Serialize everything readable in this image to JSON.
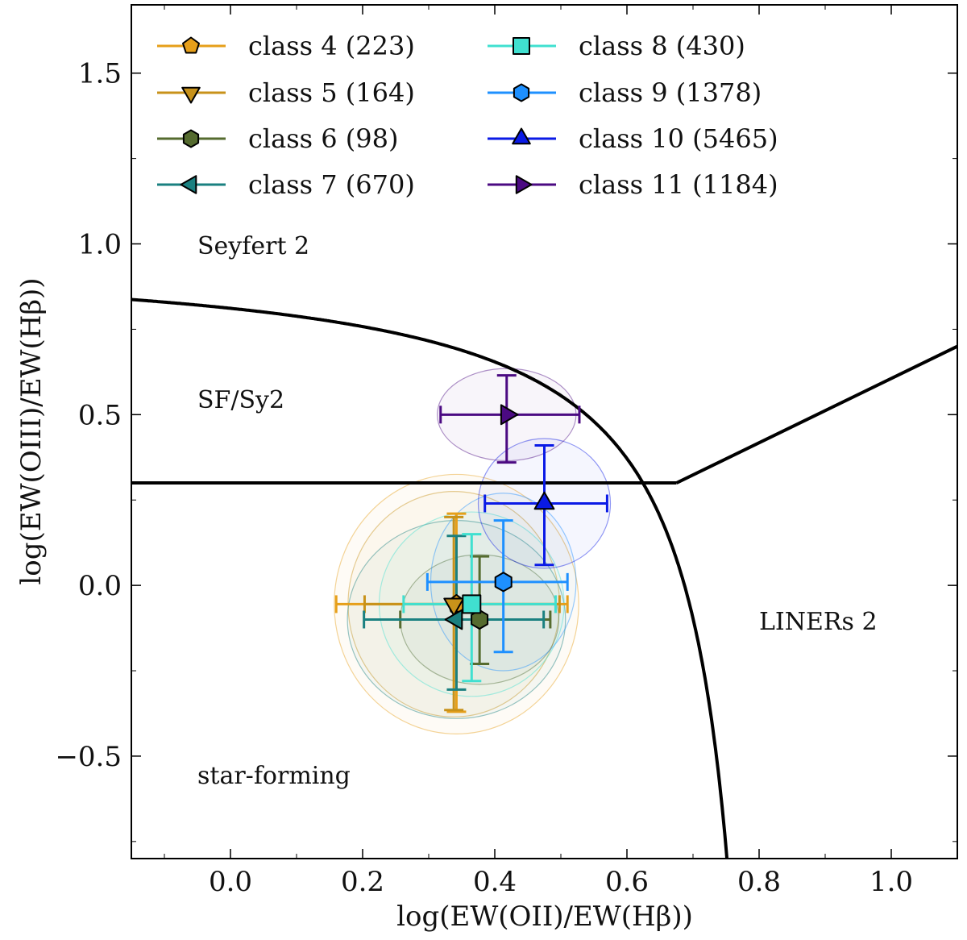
{
  "chart_data": {
    "type": "scatter",
    "xlabel": "log(EW(OII)/EW(Hβ))",
    "ylabel": "log(EW(OIII)/EW(Hβ))",
    "xlim": [
      -0.15,
      1.1
    ],
    "ylim": [
      -0.8,
      1.7
    ],
    "x_ticks": [
      {
        "value": 0.0,
        "label": "0.0"
      },
      {
        "value": 0.2,
        "label": "0.2"
      },
      {
        "value": 0.4,
        "label": "0.4"
      },
      {
        "value": 0.6,
        "label": "0.6"
      },
      {
        "value": 0.8,
        "label": "0.8"
      },
      {
        "value": 1.0,
        "label": "1.0"
      }
    ],
    "y_ticks": [
      {
        "value": -0.5,
        "label": "−0.5"
      },
      {
        "value": 0.0,
        "label": "0.0"
      },
      {
        "value": 0.5,
        "label": "0.5"
      },
      {
        "value": 1.0,
        "label": "1.0"
      },
      {
        "value": 1.5,
        "label": "1.5"
      }
    ],
    "regions": [
      {
        "label": "Seyfert 2",
        "x": -0.05,
        "y": 0.97
      },
      {
        "label": "SF/Sy2",
        "x": -0.05,
        "y": 0.52
      },
      {
        "label": "LINERs 2",
        "x": 0.8,
        "y": -0.13
      },
      {
        "label": "star-forming",
        "x": -0.05,
        "y": -0.58
      }
    ],
    "series": [
      {
        "name": "class 4 (223)",
        "color": "#E69F1A",
        "marker": "pentagon",
        "x": 0.342,
        "y": -0.055,
        "xerr": [
          0.182,
          0.168
        ],
        "yerr": [
          0.265,
          0.315
        ],
        "ell_rx": 0.185,
        "ell_ry": 0.38
      },
      {
        "name": "class 5 (164)",
        "color": "#C8921A",
        "marker": "triangle-down",
        "x": 0.338,
        "y": -0.055,
        "xerr": [
          0.135,
          0.16
        ],
        "yerr": [
          0.255,
          0.31
        ],
        "ell_rx": 0.16,
        "ell_ry": 0.33
      },
      {
        "name": "class 6 (98)",
        "color": "#556B2F",
        "marker": "hexagon",
        "x": 0.377,
        "y": -0.1,
        "xerr": [
          0.12,
          0.107
        ],
        "yerr": [
          0.185,
          0.13
        ],
        "ell_rx": 0.12,
        "ell_ry": 0.19
      },
      {
        "name": "class 7 (670)",
        "color": "#1A8080",
        "marker": "triangle-left",
        "x": 0.342,
        "y": -0.1,
        "xerr": [
          0.14,
          0.132
        ],
        "yerr": [
          0.245,
          0.205
        ],
        "ell_rx": 0.165,
        "ell_ry": 0.29
      },
      {
        "name": "class 8 (430)",
        "color": "#40E0D0",
        "marker": "square",
        "x": 0.365,
        "y": -0.055,
        "xerr": [
          0.103,
          0.127
        ],
        "yerr": [
          0.205,
          0.225
        ],
        "ell_rx": 0.14,
        "ell_ry": 0.27
      },
      {
        "name": "class 9 (1378)",
        "color": "#1E90FF",
        "marker": "hexagon",
        "x": 0.413,
        "y": 0.01,
        "xerr": [
          0.115,
          0.097
        ],
        "yerr": [
          0.18,
          0.205
        ],
        "ell_rx": 0.11,
        "ell_ry": 0.26
      },
      {
        "name": "class 10 (5465)",
        "color": "#0A1AE6",
        "marker": "triangle-up",
        "x": 0.475,
        "y": 0.24,
        "xerr": [
          0.09,
          0.095
        ],
        "yerr": [
          0.17,
          0.18
        ],
        "ell_rx": 0.1,
        "ell_ry": 0.19
      },
      {
        "name": "class 11 (1184)",
        "color": "#4B0A82",
        "marker": "triangle-right",
        "x": 0.418,
        "y": 0.5,
        "xerr": [
          0.1,
          0.11
        ],
        "yerr": [
          0.115,
          0.14
        ],
        "ell_rx": 0.105,
        "ell_ry": 0.135
      }
    ],
    "curves": {
      "kauffmann_like": "y = 0.14/(x - 0.83) + 0.98",
      "horizontal_line": {
        "y": 0.3,
        "x_from": -0.15,
        "x_to": 0.675
      },
      "liner_line": {
        "x": [
          0.675,
          1.1
        ],
        "y": [
          0.3,
          0.7
        ]
      }
    },
    "legend": {
      "location": "top-left",
      "columns": 2
    }
  }
}
